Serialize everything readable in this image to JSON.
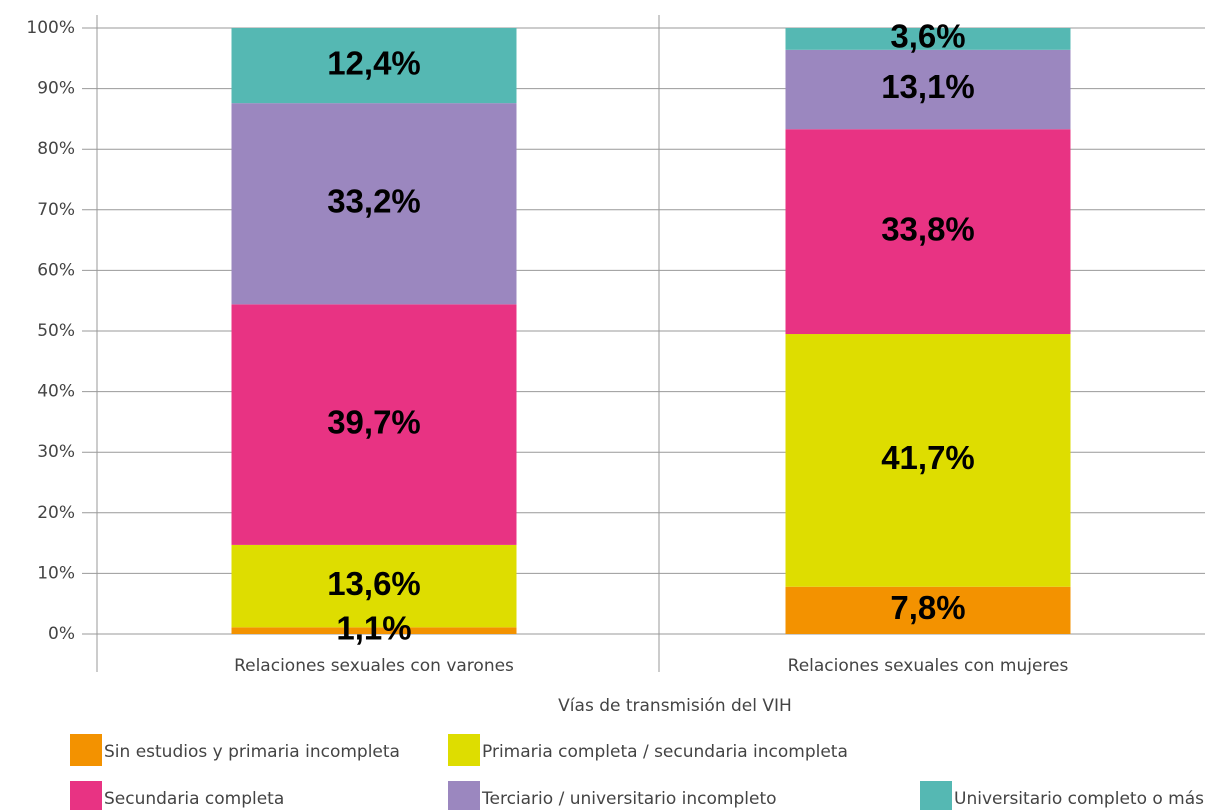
{
  "chart_data": {
    "type": "stacked_bar",
    "xlabel": "Vías de transmisión del VIH",
    "categories": [
      "Relaciones sexuales con varones",
      "Relaciones sexuales con mujeres"
    ],
    "series": [
      {
        "name": "Sin estudios y primaria incompleta",
        "color": "#f39200",
        "values": [
          1.1,
          7.8
        ],
        "value_labels": [
          "1,1%",
          "7,8%"
        ]
      },
      {
        "name": "Primaria completa / secundaria incompleta",
        "color": "#dedd00",
        "values": [
          13.6,
          41.7
        ],
        "value_labels": [
          "13,6%",
          "41,7%"
        ]
      },
      {
        "name": "Secundaria completa",
        "color": "#e83383",
        "values": [
          39.7,
          33.8
        ],
        "value_labels": [
          "39,7%",
          "33,8%"
        ]
      },
      {
        "name": "Terciario / universitario incompleto",
        "color": "#9b87bf",
        "values": [
          33.2,
          13.1
        ],
        "value_labels": [
          "33,2%",
          "13,1%"
        ]
      },
      {
        "name": "Universitario completo o más",
        "color": "#55b8b3",
        "values": [
          12.4,
          3.6
        ],
        "value_labels": [
          "12,4%",
          "3,6%"
        ]
      }
    ],
    "ylim": [
      0,
      100
    ],
    "yticks": [
      {
        "value": 0,
        "label": "0%"
      },
      {
        "value": 10,
        "label": "10%"
      },
      {
        "value": 20,
        "label": "20%"
      },
      {
        "value": 30,
        "label": "30%"
      },
      {
        "value": 40,
        "label": "40%"
      },
      {
        "value": 50,
        "label": "50%"
      },
      {
        "value": 60,
        "label": "60%"
      },
      {
        "value": 70,
        "label": "70%"
      },
      {
        "value": 80,
        "label": "80%"
      },
      {
        "value": 90,
        "label": "90%"
      },
      {
        "value": 100,
        "label": "100%"
      }
    ],
    "grid": true
  }
}
